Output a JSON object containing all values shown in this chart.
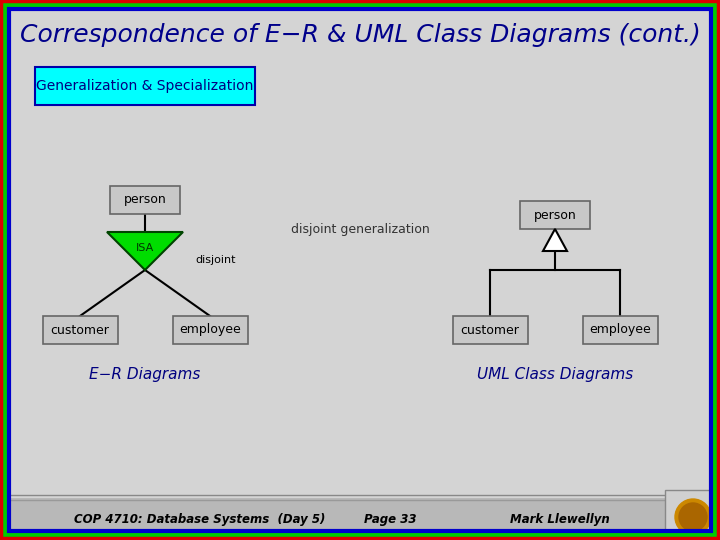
{
  "title": "Correspondence of E−R & UML Class Diagrams (cont.)",
  "subtitle_box": "Generalization & Specialization",
  "background_color": "#d4d4d4",
  "border_colors": [
    "#dd0000",
    "#00cc00",
    "#0000cc"
  ],
  "title_color": "#00008b",
  "title_fontsize": 18,
  "subtitle_bg": "#00ffff",
  "subtitle_border": "#0000aa",
  "er_label": "E−R Diagrams",
  "uml_label": "UML Class Diagrams",
  "disjoint_gen_label": "disjoint generalization",
  "disjoint_label": "disjoint",
  "footer_bg": "#b8b8b8",
  "footer_top_color": "#888888",
  "footer_left": "COP 4710: Database Systems  (Day 5)",
  "footer_center": "Page 33",
  "footer_right": "Mark Llewellyn",
  "footer_text_color": "#000000",
  "box_bg": "#c8c8c8",
  "box_border": "#666666",
  "triangle_fill": "#00dd00",
  "triangle_border": "#004400",
  "logo_color": "#cc8800"
}
